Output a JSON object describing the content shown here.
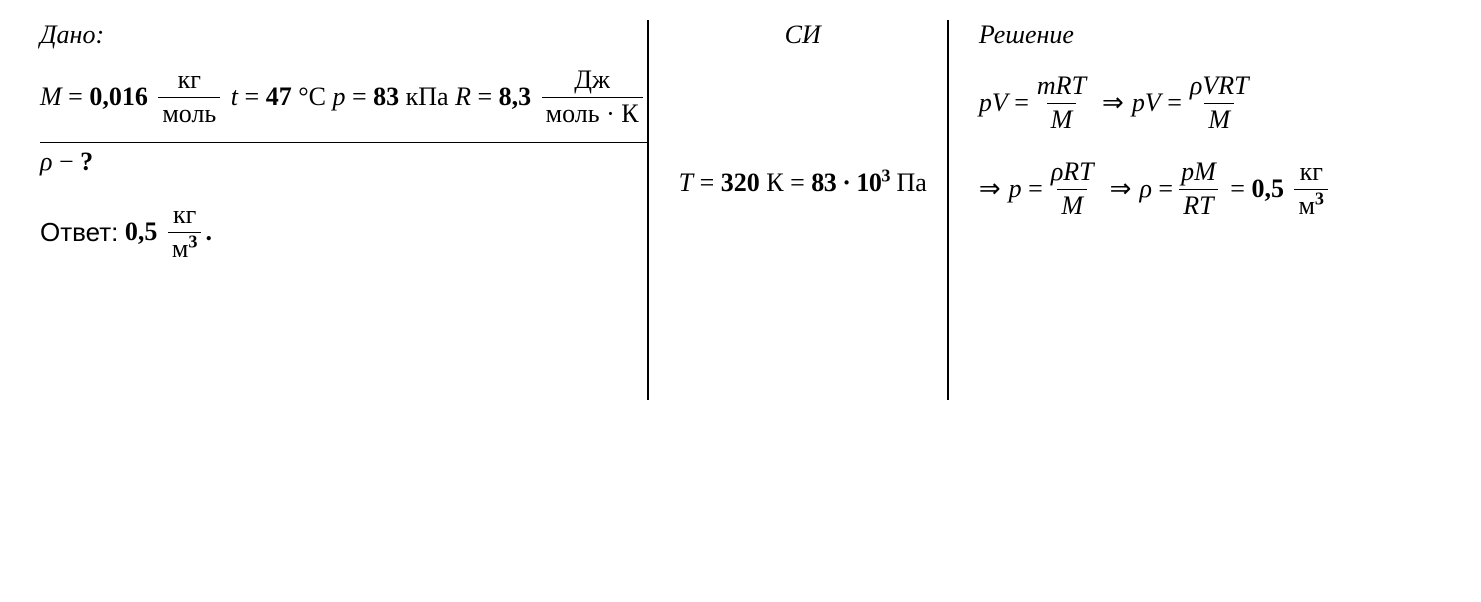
{
  "headers": {
    "given": "Дано:",
    "si": "СИ",
    "solution": "Решение"
  },
  "given": {
    "M": {
      "sym": "M",
      "eq": "=",
      "val": "0,016",
      "unit_num": "кг",
      "unit_den": "моль"
    },
    "t": {
      "sym": "t",
      "eq": "=",
      "val": "47",
      "unit": "°C"
    },
    "p": {
      "sym": "p",
      "eq": "=",
      "val": "83",
      "unit": "кПа"
    },
    "R": {
      "sym": "R",
      "eq": "=",
      "val": "8,3",
      "unit_num": "Дж",
      "unit_den": "моль · К"
    }
  },
  "find": {
    "sym": "ρ",
    "dash": "−",
    "q": "?"
  },
  "si": {
    "T": {
      "sym": "T",
      "eq": "=",
      "val": "320",
      "unit": "К"
    },
    "p": {
      "eq": "=",
      "base": "83 · 10",
      "exp": "3",
      "unit": "Па"
    }
  },
  "solution": {
    "l1a": {
      "lhs": "pV",
      "eq": "=",
      "num": "mRT",
      "den": "M"
    },
    "arr": "⇒",
    "l1b": {
      "lhs": "pV",
      "eq": "=",
      "num": "ρVRT",
      "den": "M"
    },
    "l2a": {
      "lhs": "p",
      "eq": "=",
      "num": "ρRT",
      "den": "M"
    },
    "l2b": {
      "lhs": "ρ",
      "eq": "=",
      "num": "pM",
      "den": "RT",
      "eq2": "=",
      "val": "0,5",
      "unit_num": "кг",
      "unit_den_pre": "м",
      "unit_den_exp": "3"
    }
  },
  "answer": {
    "label": "Ответ:",
    "val": "0,5",
    "unit_num": "кг",
    "unit_den_pre": "м",
    "unit_den_exp": "3",
    "dot": "."
  }
}
